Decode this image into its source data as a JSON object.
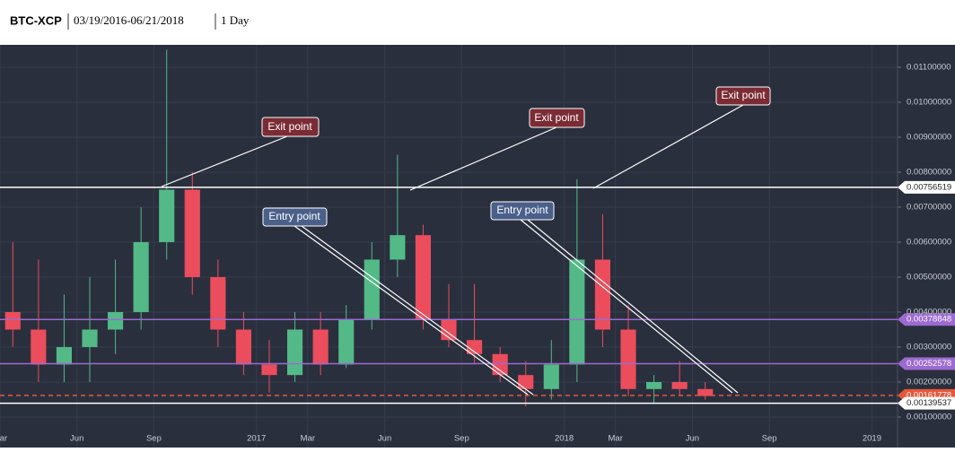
{
  "header": {
    "symbol": "BTC-XCP",
    "date_range": "03/19/2016-06/21/2018",
    "interval": "1 Day"
  },
  "chart_data": {
    "type": "candlestick",
    "x": [
      "2016-03",
      "2016-04",
      "2016-05",
      "2016-06",
      "2016-07",
      "2016-08",
      "2016-09",
      "2016-10",
      "2016-11",
      "2016-12",
      "2017-01",
      "2017-02",
      "2017-03",
      "2017-04",
      "2017-05",
      "2017-06",
      "2017-07",
      "2017-08",
      "2017-09",
      "2017-10",
      "2017-11",
      "2017-12",
      "2018-01",
      "2018-02",
      "2018-03",
      "2018-04",
      "2018-05",
      "2018-06"
    ],
    "open": [
      0.004,
      0.0035,
      0.0025,
      0.003,
      0.0035,
      0.004,
      0.006,
      0.0075,
      0.005,
      0.0035,
      0.0025,
      0.0022,
      0.0035,
      0.0025,
      0.0038,
      0.0055,
      0.0062,
      0.0038,
      0.0032,
      0.0028,
      0.0022,
      0.0018,
      0.0025,
      0.0055,
      0.0035,
      0.0018,
      0.002,
      0.0018
    ],
    "high": [
      0.006,
      0.0055,
      0.0045,
      0.005,
      0.0055,
      0.007,
      0.0115,
      0.008,
      0.0055,
      0.004,
      0.0032,
      0.004,
      0.004,
      0.0042,
      0.006,
      0.0085,
      0.0065,
      0.0048,
      0.0048,
      0.003,
      0.0026,
      0.0032,
      0.0078,
      0.0068,
      0.0042,
      0.0022,
      0.0026,
      0.002
    ],
    "low": [
      0.003,
      0.002,
      0.002,
      0.002,
      0.0028,
      0.0035,
      0.0055,
      0.0045,
      0.003,
      0.0022,
      0.0017,
      0.002,
      0.0022,
      0.0024,
      0.0035,
      0.005,
      0.0035,
      0.003,
      0.0025,
      0.002,
      0.0013,
      0.0015,
      0.002,
      0.003,
      0.0016,
      0.0014,
      0.0016,
      0.0015
    ],
    "close": [
      0.0035,
      0.0025,
      0.003,
      0.0035,
      0.004,
      0.006,
      0.0075,
      0.005,
      0.0035,
      0.0025,
      0.0022,
      0.0035,
      0.0025,
      0.0038,
      0.0055,
      0.0062,
      0.0038,
      0.0032,
      0.0028,
      0.0022,
      0.0018,
      0.0025,
      0.0055,
      0.0035,
      0.0018,
      0.002,
      0.0018,
      0.0016
    ],
    "up_color": "#53b987",
    "down_color": "#eb4d5c",
    "xlim": [
      "2016-03",
      "2019-02"
    ],
    "xticks": [
      {
        "value": "2016-03",
        "label": "Mar"
      },
      {
        "value": "2016-06",
        "label": "Jun"
      },
      {
        "value": "2016-09",
        "label": "Sep"
      },
      {
        "value": "2017-01",
        "label": "2017"
      },
      {
        "value": "2017-03",
        "label": "Mar"
      },
      {
        "value": "2017-06",
        "label": "Jun"
      },
      {
        "value": "2017-09",
        "label": "Sep"
      },
      {
        "value": "2018-01",
        "label": "2018"
      },
      {
        "value": "2018-03",
        "label": "Mar"
      },
      {
        "value": "2018-06",
        "label": "Jun"
      },
      {
        "value": "2018-09",
        "label": "Sep"
      },
      {
        "value": "2019-01",
        "label": "2019"
      }
    ],
    "ylim": [
      0.000128,
      0.01164
    ],
    "yticks": [
      {
        "value": 0.001,
        "label": "0.00100000"
      },
      {
        "value": 0.002,
        "label": "0.00200000"
      },
      {
        "value": 0.003,
        "label": "0.00300000"
      },
      {
        "value": 0.004,
        "label": "0.00400000"
      },
      {
        "value": 0.005,
        "label": "0.00500000"
      },
      {
        "value": 0.006,
        "label": "0.00600000"
      },
      {
        "value": 0.007,
        "label": "0.00700000"
      },
      {
        "value": 0.008,
        "label": "0.00800000"
      },
      {
        "value": 0.009,
        "label": "0.00900000"
      },
      {
        "value": 0.01,
        "label": "0.01000000"
      },
      {
        "value": 0.011,
        "label": "0.01100000"
      }
    ],
    "grid": true,
    "levels": [
      {
        "value": 0.00756519,
        "color": "#ffffff"
      },
      {
        "value": 0.00378848,
        "color": "#9c6ad1"
      },
      {
        "value": 0.00252578,
        "color": "#9c6ad1"
      },
      {
        "value": 0.00161778,
        "color": "#e8573a",
        "dashed": true
      },
      {
        "value": 0.00139537,
        "color": "#ffffff"
      }
    ],
    "annotations": [
      "Exit point",
      "Exit point",
      "Exit point",
      "Entry point",
      "Entry point"
    ]
  }
}
